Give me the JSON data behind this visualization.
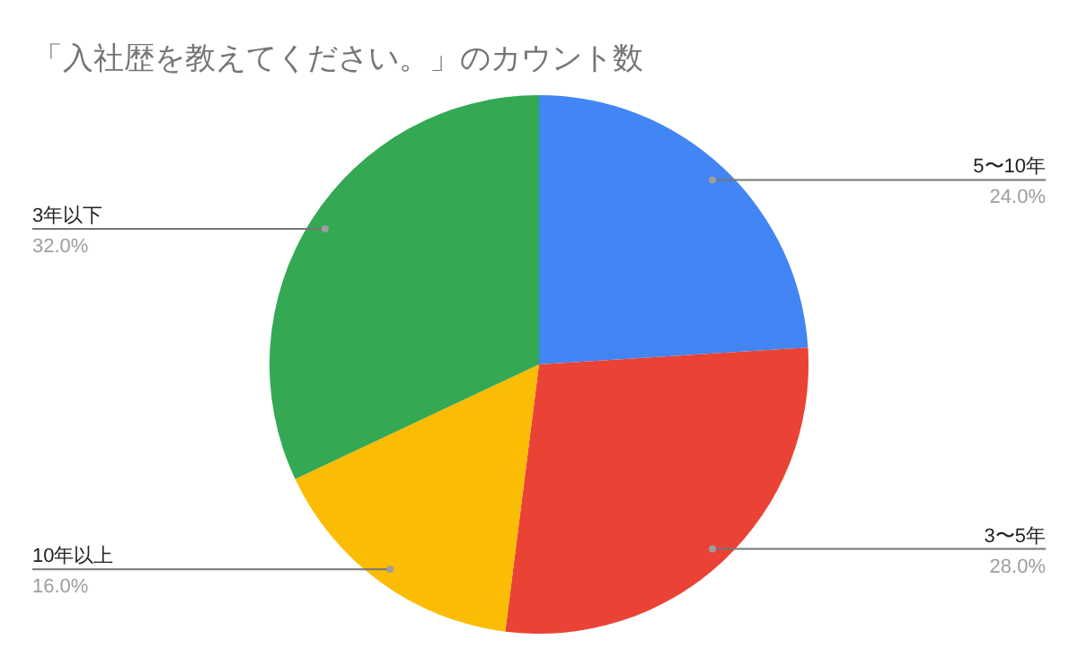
{
  "chart_data": {
    "type": "pie",
    "title": "「入社歴を教えてください。」のカウント数",
    "categories": [
      "5〜10年",
      "3〜5年",
      "10年以上",
      "3年以下"
    ],
    "values": [
      24,
      28,
      16,
      32
    ],
    "value_labels": [
      "24.0%",
      "28.0%",
      "16.0%",
      "32.0%"
    ],
    "colors": [
      "#4285f4",
      "#ea4335",
      "#fbbc04",
      "#34a853"
    ]
  }
}
